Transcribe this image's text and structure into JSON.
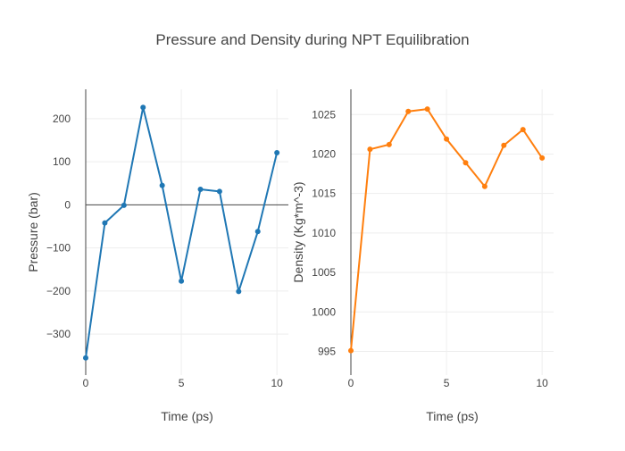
{
  "title": "Pressure and Density during NPT Equilibration",
  "colors": {
    "series1": "#1f77b4",
    "series2": "#ff7f0e",
    "grid": "#eeeeee",
    "axis": "#444444"
  },
  "chart_data": [
    {
      "type": "line",
      "xlabel": "Time (ps)",
      "ylabel": "Pressure (bar)",
      "xlim": [
        0,
        10.6
      ],
      "ylim": [
        -395,
        268
      ],
      "xticks": [
        0,
        5,
        10
      ],
      "yticks": [
        200,
        100,
        0,
        -100,
        -200,
        -300
      ],
      "ytick_labels": [
        "200",
        "100",
        "0",
        "−100",
        "−200",
        "−300"
      ],
      "grid": true,
      "legend": "none",
      "series": [
        {
          "color": "#1f77b4",
          "x": [
            0,
            1,
            2,
            3,
            4,
            5,
            6,
            7,
            8,
            9,
            10
          ],
          "y": [
            -355,
            -42,
            -1,
            226,
            45,
            -177,
            36,
            31,
            -201,
            -62,
            121
          ]
        }
      ]
    },
    {
      "type": "line",
      "xlabel": "Time (ps)",
      "ylabel": "Density (Kg*m^-3)",
      "xlim": [
        0,
        10.6
      ],
      "ylim": [
        992,
        1028.2
      ],
      "xticks": [
        0,
        5,
        10
      ],
      "yticks": [
        1025,
        1020,
        1015,
        1010,
        1005,
        1000,
        995
      ],
      "ytick_labels": [
        "1025",
        "1020",
        "1015",
        "1010",
        "1005",
        "1000",
        "995"
      ],
      "grid": true,
      "legend": "none",
      "series": [
        {
          "color": "#ff7f0e",
          "x": [
            0,
            1,
            2,
            3,
            4,
            5,
            6,
            7,
            8,
            9,
            10
          ],
          "y": [
            995.1,
            1020.6,
            1021.2,
            1025.4,
            1025.7,
            1021.9,
            1018.9,
            1015.9,
            1021.1,
            1023.1,
            1019.5
          ]
        }
      ]
    }
  ]
}
